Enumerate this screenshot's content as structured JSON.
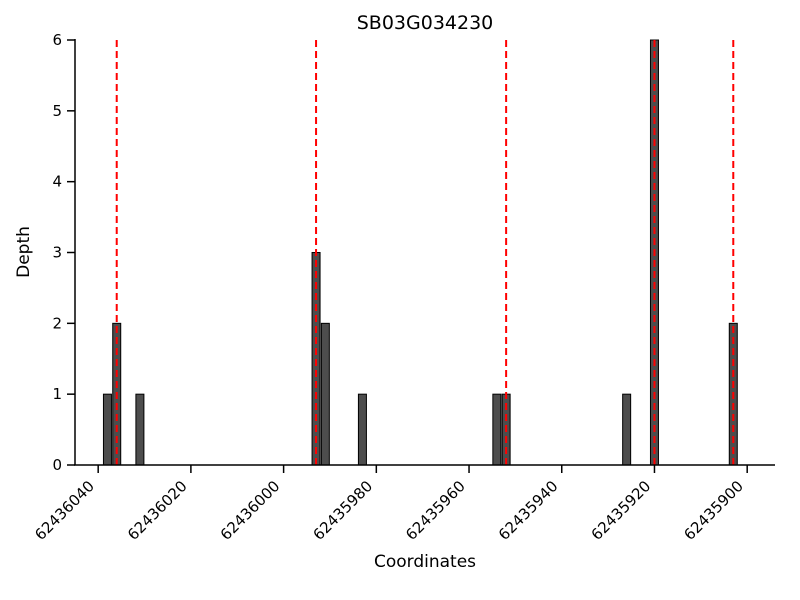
{
  "chart_data": {
    "type": "bar",
    "title": "SB03G034230",
    "xlabel": "Coordinates",
    "ylabel": "Depth",
    "x_axis": {
      "reversed": true,
      "min": 62435894,
      "max": 62436045,
      "ticks": [
        62436040,
        62436020,
        62436000,
        62435980,
        62435960,
        62435940,
        62435920,
        62435900
      ],
      "tick_rotation_deg": 45
    },
    "y_axis": {
      "min": 0,
      "max": 6,
      "ticks": [
        0,
        1,
        2,
        3,
        4,
        5,
        6
      ]
    },
    "bars": [
      {
        "coordinate": 62436038,
        "depth": 1
      },
      {
        "coordinate": 62436036,
        "depth": 2
      },
      {
        "coordinate": 62436031,
        "depth": 1
      },
      {
        "coordinate": 62435993,
        "depth": 3
      },
      {
        "coordinate": 62435991,
        "depth": 2
      },
      {
        "coordinate": 62435983,
        "depth": 1
      },
      {
        "coordinate": 62435954,
        "depth": 1
      },
      {
        "coordinate": 62435952,
        "depth": 1
      },
      {
        "coordinate": 62435926,
        "depth": 1
      },
      {
        "coordinate": 62435920,
        "depth": 6
      },
      {
        "coordinate": 62435903,
        "depth": 2
      }
    ],
    "variant_lines": [
      62436036,
      62435993,
      62435952,
      62435920,
      62435903
    ],
    "style": {
      "bar_color": "#4d4d4d",
      "bar_edge_color": "#000000",
      "vline_color": "#ff0000",
      "axis_color": "#000000",
      "background": "#ffffff"
    }
  }
}
